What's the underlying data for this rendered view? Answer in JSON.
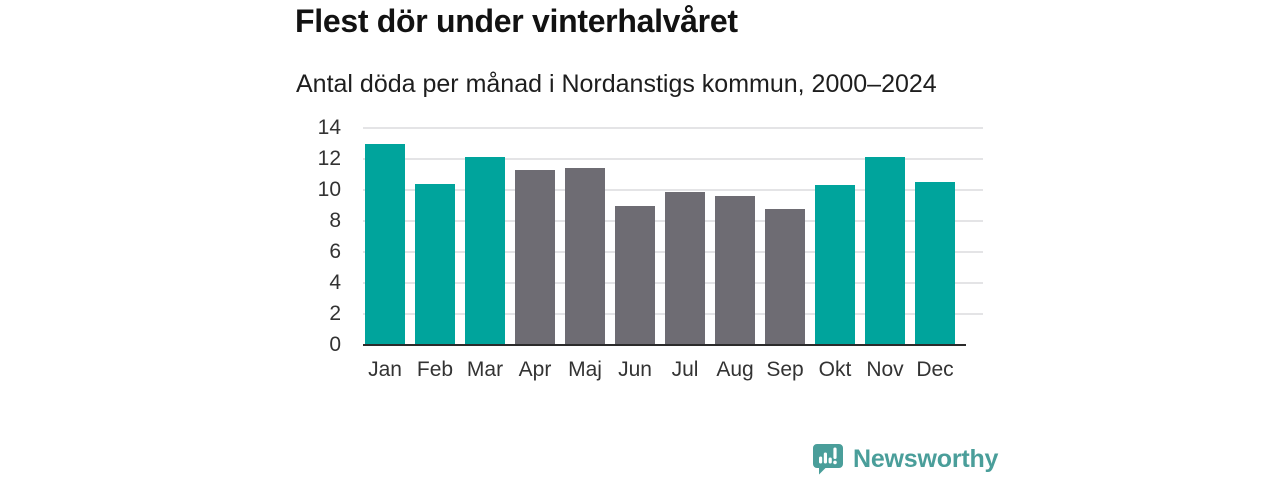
{
  "chart_data": {
    "type": "bar",
    "title": "Flest dör under vinterhalvåret",
    "subtitle": "Antal döda per månad i Nordanstigs kommun, 2000–2024",
    "categories": [
      "Jan",
      "Feb",
      "Mar",
      "Apr",
      "Maj",
      "Jun",
      "Jul",
      "Aug",
      "Sep",
      "Okt",
      "Nov",
      "Dec"
    ],
    "values": [
      13.0,
      10.4,
      12.1,
      11.3,
      11.4,
      9.0,
      9.9,
      9.6,
      8.8,
      10.3,
      12.1,
      10.5
    ],
    "highlighted_categories": [
      "Jan",
      "Feb",
      "Mar",
      "Okt",
      "Nov",
      "Dec"
    ],
    "yticks": [
      0,
      2,
      4,
      6,
      8,
      10,
      12,
      14
    ],
    "ylim": [
      0,
      14
    ],
    "xlabel": "",
    "ylabel": "",
    "grid": "horizontal",
    "legend": "none",
    "colors": {
      "highlight_bar": "#00a49c",
      "default_bar": "#6e6c73",
      "gridline": "#e4e4e6",
      "axis_line": "#2b2b2b",
      "axis_text": "#333333",
      "title_text": "#121212"
    }
  },
  "footer": {
    "brand_label": "Newsworthy",
    "brand_color": "#4a9e9a",
    "logo_icon": "bar-chart-speech-bubble-icon"
  }
}
